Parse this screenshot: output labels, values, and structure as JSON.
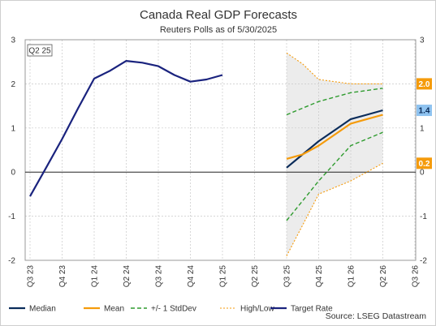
{
  "chart_data": {
    "type": "line",
    "title": "Canada Real GDP Forecasts",
    "subtitle": "Reuters Polls as of 5/30/2025",
    "source": "Source: LSEG Datastream",
    "annotation": "Q2 25",
    "x_labels": [
      "Q3 23",
      "Q4 23",
      "Q1 24",
      "Q2 24",
      "Q3 24",
      "Q4 24",
      "Q1 25",
      "Q2 25",
      "Q3 25",
      "Q4 25",
      "Q1 26",
      "Q2 26",
      "Q3 26"
    ],
    "ylim": [
      -2,
      3
    ],
    "y_ticks": [
      "-2",
      "-1",
      "0",
      "1",
      "2",
      "3"
    ],
    "y_ticks_right": [
      "-2",
      "-1",
      "0",
      "1",
      "2",
      "3"
    ],
    "grid": true,
    "legend_position": "bottom",
    "band_series": "High/Low",
    "series": [
      {
        "name": "Target Rate",
        "color": "#1a237e",
        "style": "solid",
        "points": [
          [
            0,
            -0.55
          ],
          [
            0.5,
            0.1
          ],
          [
            1,
            0.75
          ],
          [
            1.5,
            1.45
          ],
          [
            2,
            2.12
          ],
          [
            2.5,
            2.3
          ],
          [
            3,
            2.52
          ],
          [
            3.5,
            2.48
          ],
          [
            4,
            2.4
          ],
          [
            4.5,
            2.2
          ],
          [
            5,
            2.05
          ],
          [
            5.5,
            2.1
          ],
          [
            6,
            2.2
          ]
        ]
      },
      {
        "name": "Median",
        "color": "#0b2c5a",
        "style": "solid",
        "points": [
          [
            8,
            0.1
          ],
          [
            8.5,
            0.4
          ],
          [
            9,
            0.7
          ],
          [
            9.5,
            0.95
          ],
          [
            10,
            1.2
          ],
          [
            10.5,
            1.3
          ],
          [
            11,
            1.4
          ]
        ]
      },
      {
        "name": "Mean",
        "color": "#f59b0b",
        "style": "solid",
        "points": [
          [
            8,
            0.3
          ],
          [
            8.5,
            0.4
          ],
          [
            9,
            0.6
          ],
          [
            9.5,
            0.85
          ],
          [
            10,
            1.1
          ],
          [
            10.5,
            1.2
          ],
          [
            11,
            1.3
          ]
        ]
      },
      {
        "name": "+/- 1 StdDev",
        "color": "#2e9b2e",
        "style": "dashed",
        "upper": [
          [
            8,
            1.3
          ],
          [
            8.5,
            1.45
          ],
          [
            9,
            1.6
          ],
          [
            9.5,
            1.7
          ],
          [
            10,
            1.8
          ],
          [
            10.5,
            1.85
          ],
          [
            11,
            1.9
          ]
        ],
        "lower": [
          [
            8,
            -1.1
          ],
          [
            8.5,
            -0.65
          ],
          [
            9,
            -0.2
          ],
          [
            9.5,
            0.2
          ],
          [
            10,
            0.6
          ],
          [
            10.5,
            0.75
          ],
          [
            11,
            0.9
          ]
        ]
      },
      {
        "name": "High/Low",
        "color": "#f59b0b",
        "style": "dotted",
        "upper": [
          [
            8,
            2.7
          ],
          [
            8.5,
            2.45
          ],
          [
            9,
            2.1
          ],
          [
            9.5,
            2.05
          ],
          [
            10,
            2.0
          ],
          [
            10.5,
            2.0
          ],
          [
            11,
            2.0
          ]
        ],
        "lower": [
          [
            8,
            -1.9
          ],
          [
            8.5,
            -1.2
          ],
          [
            9,
            -0.5
          ],
          [
            9.5,
            -0.35
          ],
          [
            10,
            -0.2
          ],
          [
            10.5,
            0.0
          ],
          [
            11,
            0.2
          ]
        ]
      }
    ],
    "legend": [
      "Median",
      "Mean",
      "+/- 1 StdDev",
      "High/Low",
      "Target Rate"
    ],
    "badges": [
      {
        "label": "2.0",
        "value": 2.0,
        "bg": "#f59b0b",
        "fg": "#ffffff"
      },
      {
        "label": "1.4",
        "value": 1.4,
        "bg": "#8fc3f0",
        "fg": "#0b2c5a"
      },
      {
        "label": "0.2",
        "value": 0.2,
        "bg": "#f59b0b",
        "fg": "#ffffff"
      }
    ]
  }
}
